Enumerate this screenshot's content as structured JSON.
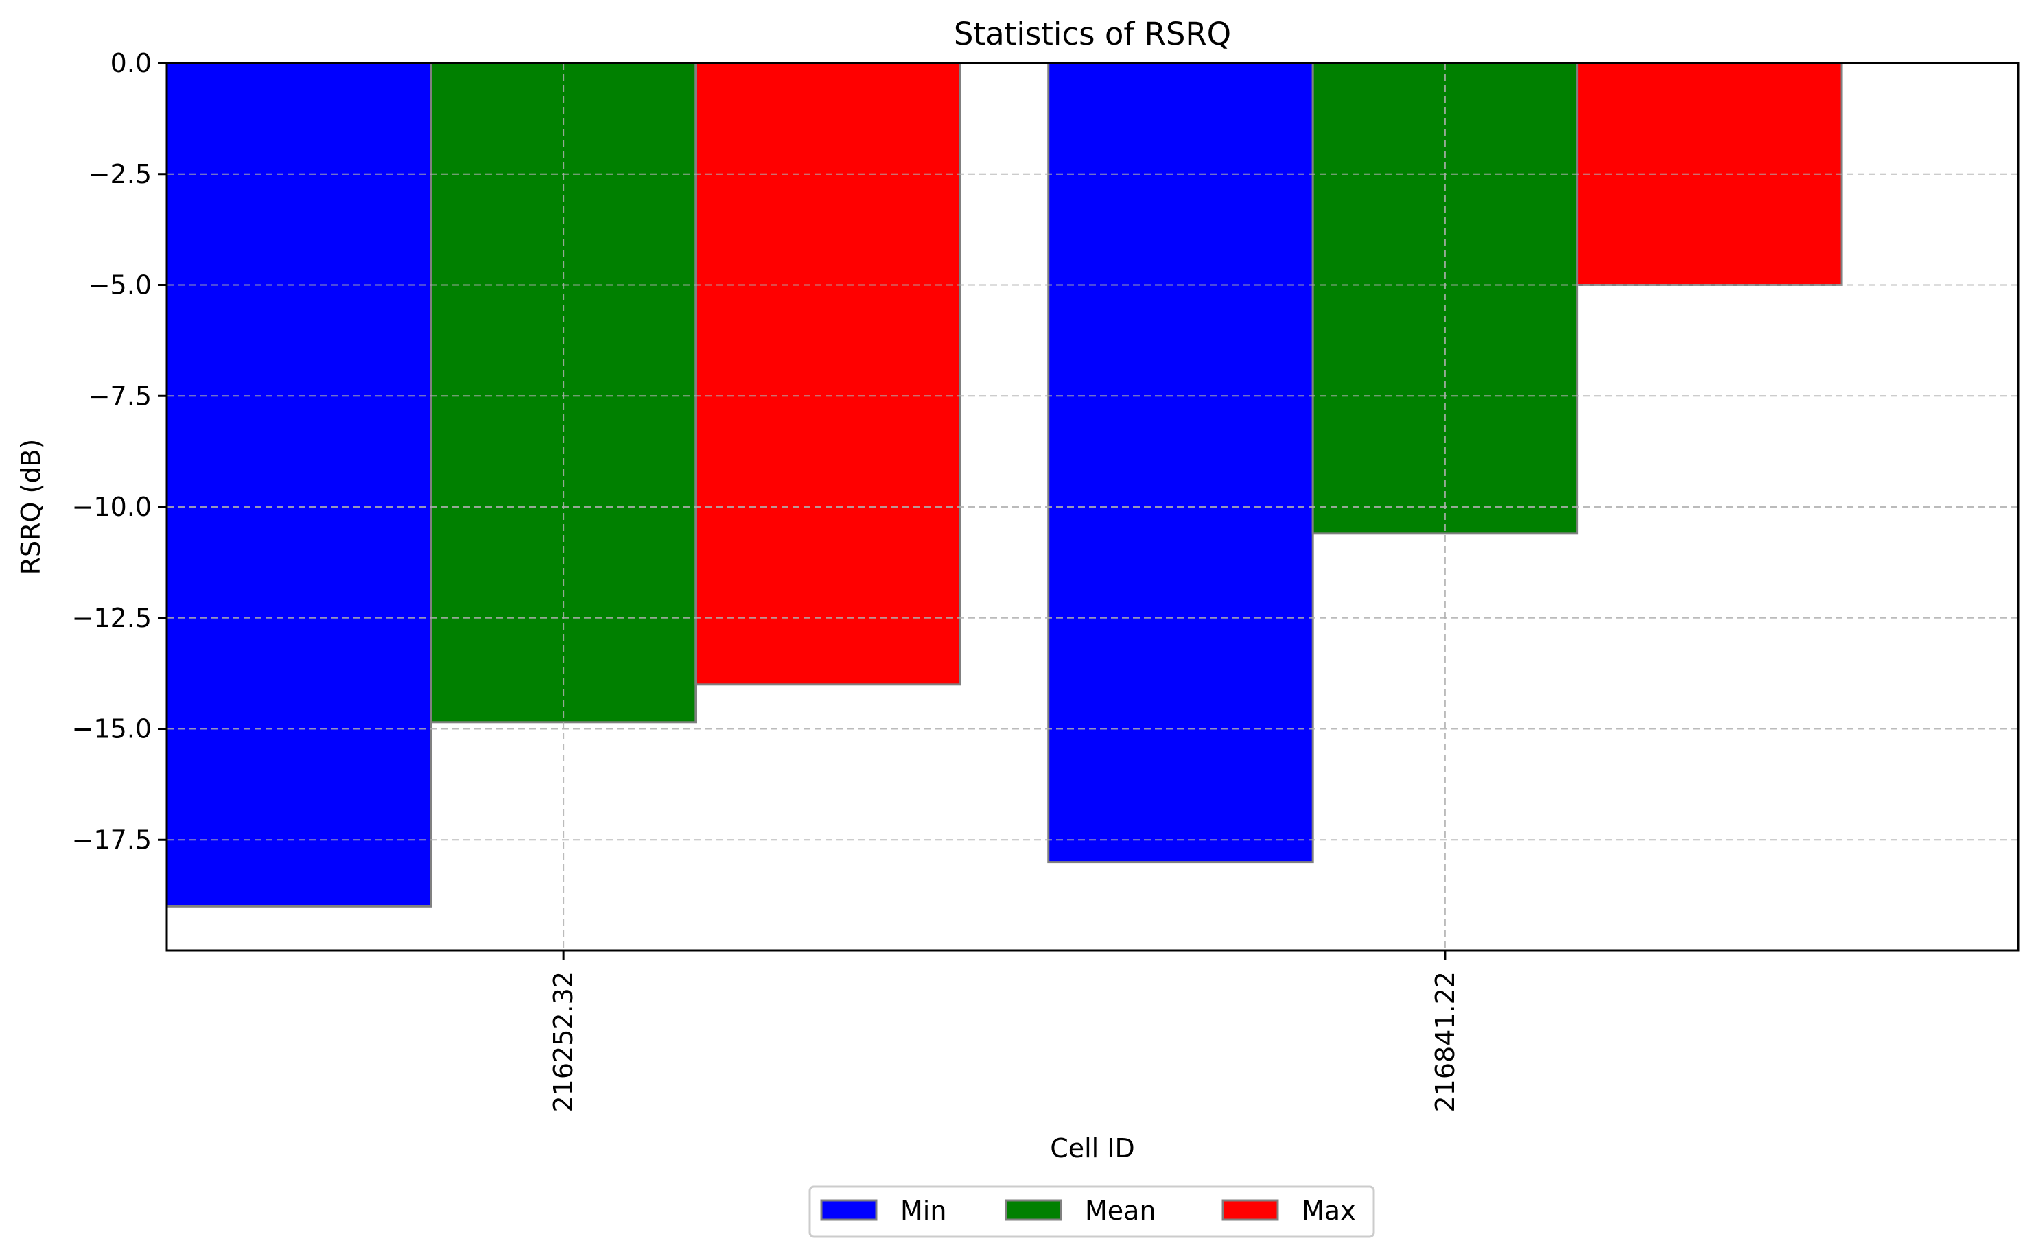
{
  "chart_data": {
    "type": "bar",
    "title": "Statistics of RSRQ",
    "xlabel": "Cell ID",
    "ylabel": "RSRQ (dB)",
    "categories": [
      "216252.32",
      "216841.22"
    ],
    "series": [
      {
        "name": "Min",
        "color": "#0000ff",
        "values": [
          -19.0,
          -18.0
        ]
      },
      {
        "name": "Mean",
        "color": "#008000",
        "values": [
          -14.85,
          -10.6
        ]
      },
      {
        "name": "Max",
        "color": "#ff0000",
        "values": [
          -14.0,
          -5.0
        ]
      }
    ],
    "ylim": [
      -20.0,
      0.0
    ],
    "yticks": [
      0.0,
      -2.5,
      -5.0,
      -7.5,
      -10.0,
      -12.5,
      -15.0,
      -17.5
    ],
    "ytick_labels": [
      "0.0",
      "−2.5",
      "−5.0",
      "−7.5",
      "−10.0",
      "−12.5",
      "−15.0",
      "−17.5"
    ],
    "grid": true,
    "x_tick_rotation": "vertical",
    "legend_position": "bottom-center",
    "bar_edge_color": "#808080"
  }
}
